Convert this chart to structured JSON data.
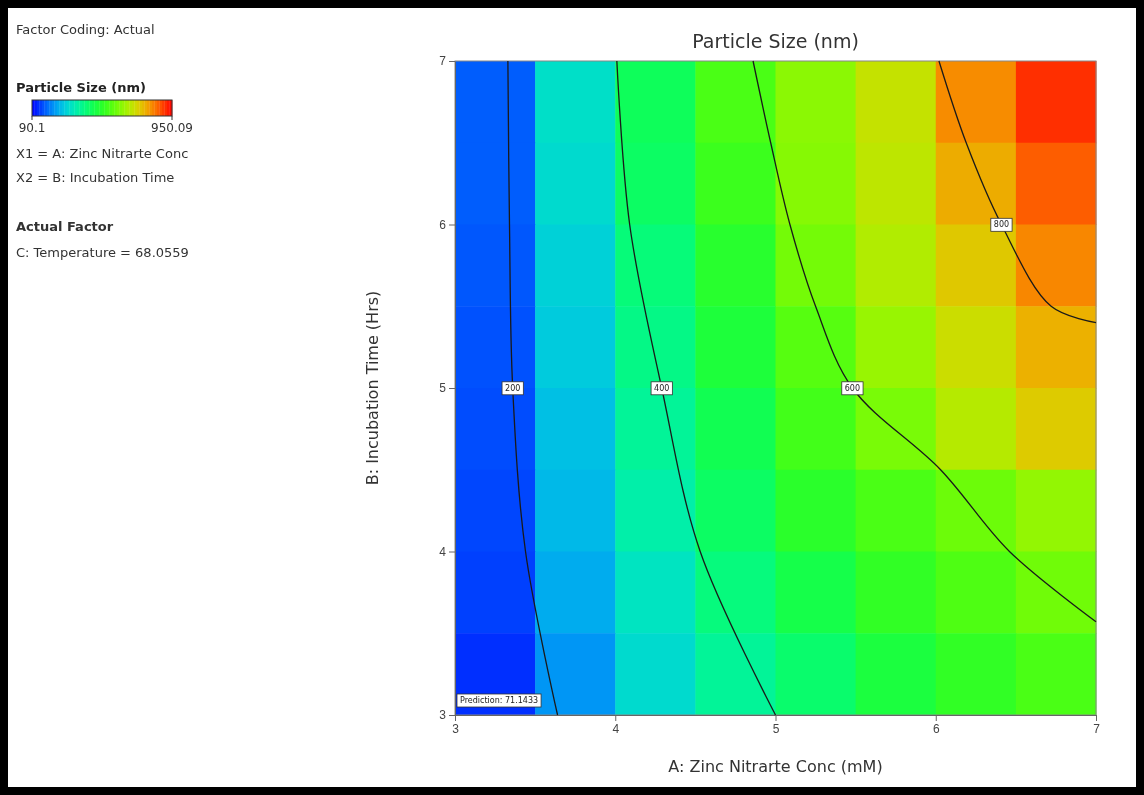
{
  "chart_data": [
    {
      "type": "heatmap",
      "title": "Particle Size (nm)",
      "clabel": "Particle Size (nm)",
      "categories": [
        null,
        null,
        null,
        null,
        null,
        null,
        null,
        null
      ],
      "y_categories": [
        null,
        null,
        null,
        null,
        null,
        null,
        null,
        null
      ],
      "cells": [
        [
          170,
          325,
          455,
          565,
          640,
          710,
          825,
          910
        ],
        [
          170,
          315,
          445,
          545,
          635,
          700,
          790,
          870
        ],
        [
          165,
          300,
          420,
          515,
          615,
          685,
          755,
          830
        ],
        [
          160,
          290,
          405,
          495,
          580,
          655,
          720,
          785
        ],
        [
          155,
          275,
          385,
          465,
          555,
          620,
          690,
          750
        ],
        [
          150,
          265,
          365,
          445,
          520,
          565,
          605,
          650
        ],
        [
          145,
          250,
          335,
          415,
          475,
          530,
          570,
          610
        ],
        [
          130,
          225,
          315,
          385,
          435,
          490,
          530,
          565
        ]
      ],
      "clim": [
        90.1,
        950.09
      ],
      "cticks": [
        90.1,
        950.09
      ],
      "annotations": [
        "Factor Coding: Actual",
        "X1 = A: Zinc Nitrarte Conc",
        "X2 = B: Incubation Time",
        "Actual Factor",
        "C: Temperature = 68.0559",
        "Prediction: 71.1433"
      ]
    },
    {
      "type": "line",
      "xlabel": "A: Zinc Nitrarte Conc (mM)",
      "ylabel": "B: Incubation Time (Hrs)",
      "xlim": [
        3,
        7
      ],
      "ylim": [
        3,
        7
      ],
      "xticks": [
        3,
        4,
        5,
        6,
        7
      ],
      "yticks": [
        3,
        4,
        5,
        6,
        7
      ],
      "series": [
        {
          "name": "200",
          "color": "#1a1a1a",
          "x": [
            3.33,
            3.34,
            3.36,
            3.44,
            3.64
          ],
          "values": [
            7,
            6,
            5,
            4,
            3
          ]
        },
        {
          "name": "400",
          "color": "#1a1a1a",
          "x": [
            4.01,
            4.09,
            4.29,
            4.53,
            5.0
          ],
          "values": [
            7,
            6,
            5,
            4,
            3
          ]
        },
        {
          "name": "600",
          "color": "#1a1a1a",
          "x": [
            4.86,
            4.97,
            5.09,
            5.25,
            5.48,
            6.03,
            6.46,
            7.0
          ],
          "values": [
            7,
            6.5,
            6,
            5.5,
            5,
            4.5,
            4,
            3.57
          ]
        },
        {
          "name": "800",
          "color": "#1a1a1a",
          "x": [
            6.02,
            6.19,
            6.41,
            6.72,
            7.0
          ],
          "values": [
            7,
            6.5,
            6,
            5.5,
            5.4
          ]
        }
      ]
    }
  ]
}
